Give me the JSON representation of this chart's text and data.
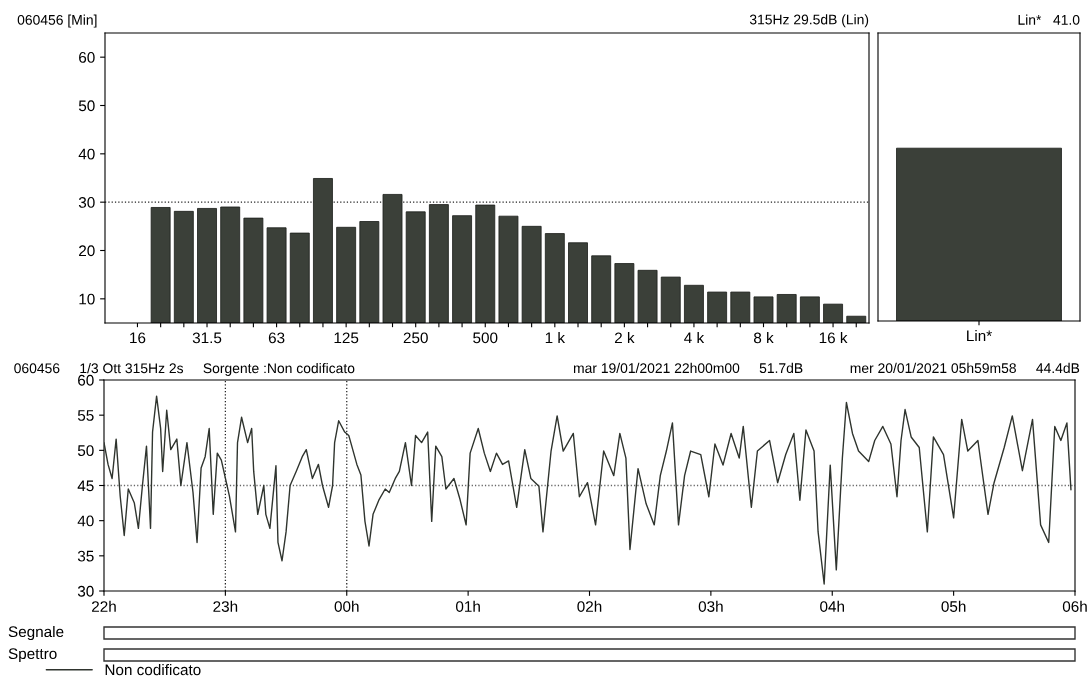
{
  "chart_data": [
    {
      "type": "bar",
      "title": "060456 [Min]",
      "annotations": [
        "315Hz 29.5dB (Lin)"
      ],
      "categories": [
        "16",
        null,
        null,
        "31.5",
        null,
        null,
        "63",
        null,
        null,
        "125",
        null,
        null,
        "250",
        null,
        null,
        "500",
        null,
        null,
        "1 k",
        null,
        null,
        "2 k",
        null,
        null,
        "4 k",
        null,
        null,
        "8 k",
        null,
        null,
        "16 k",
        null
      ],
      "values": [
        null,
        28.9,
        28.1,
        28.7,
        29.0,
        26.7,
        24.7,
        23.6,
        34.9,
        24.8,
        26.0,
        31.6,
        28.0,
        29.5,
        27.2,
        29.4,
        27.1,
        25.0,
        23.5,
        21.6,
        18.9,
        17.3,
        15.9,
        14.5,
        12.8,
        11.4,
        11.4,
        10.4,
        10.9,
        10.4,
        8.9,
        6.4
      ],
      "color": "#3b4039",
      "ylim": [
        5,
        65
      ],
      "yticks": [
        10,
        20,
        30,
        40,
        50,
        60
      ],
      "grid": false,
      "ref_lines": [
        {
          "axis": "y",
          "value": 30,
          "line_style": "dotted",
          "color": "#222222"
        }
      ]
    },
    {
      "type": "bar",
      "title": "Lin*   41.0",
      "categories": [
        "Lin*"
      ],
      "values": [
        41.0
      ],
      "color": "#3b4039",
      "ylim": [
        5,
        65
      ],
      "tick_labels": "x",
      "grid": false
    },
    {
      "type": "line",
      "title": "060456     1/3 Ott 315Hz 2s     Sorgente :Non codificato",
      "annotations": [
        "mar 19/01/2021 22h00m00     51.7dB",
        "mer 20/01/2021 05h59m58     44.4dB",
        "Segnale",
        "Spettro"
      ],
      "xlim": [
        "2021-01-19T22:00",
        "2021-01-20T06:00"
      ],
      "xticks": [
        {
          "value": "2021-01-19T22:00",
          "label": "22h"
        },
        {
          "value": "2021-01-19T23:00",
          "label": "23h"
        },
        {
          "value": "2021-01-20T00:00",
          "label": "00h"
        },
        {
          "value": "2021-01-20T01:00",
          "label": "01h"
        },
        {
          "value": "2021-01-20T02:00",
          "label": "02h"
        },
        {
          "value": "2021-01-20T03:00",
          "label": "03h"
        },
        {
          "value": "2021-01-20T04:00",
          "label": "04h"
        },
        {
          "value": "2021-01-20T05:00",
          "label": "05h"
        },
        {
          "value": "2021-01-20T06:00",
          "label": "06h"
        }
      ],
      "ylim": [
        30,
        60
      ],
      "yticks": [
        30,
        35,
        40,
        45,
        50,
        55,
        60
      ],
      "grid": false,
      "legend": "bottom",
      "line_style": "solid",
      "marker": "none",
      "ref_lines": [
        {
          "axis": "y",
          "value": 45,
          "line_style": "dotted",
          "color": "#666666"
        },
        {
          "axis": "x",
          "value": "2021-01-19T23:00",
          "line_style": "dotted",
          "color": "#222222"
        },
        {
          "axis": "x",
          "value": "2021-01-20T00:00",
          "line_style": "dotted",
          "color": "#222222"
        }
      ],
      "series": [
        {
          "name": "Non codificato",
          "color": "#2f342e",
          "x": [
            "2021-01-19T22:00",
            "2021-01-19T22:02",
            "2021-01-19T22:04",
            "2021-01-19T22:06",
            "2021-01-19T22:08",
            "2021-01-19T22:10",
            "2021-01-19T22:12",
            "2021-01-19T22:15",
            "2021-01-19T22:17",
            "2021-01-19T22:19",
            "2021-01-19T22:21",
            "2021-01-19T22:23",
            "2021-01-19T22:24",
            "2021-01-19T22:26",
            "2021-01-19T22:28",
            "2021-01-19T22:29",
            "2021-01-19T22:31",
            "2021-01-19T22:33",
            "2021-01-19T22:36",
            "2021-01-19T22:38",
            "2021-01-19T22:41",
            "2021-01-19T22:44",
            "2021-01-19T22:46",
            "2021-01-19T22:48",
            "2021-01-19T22:50",
            "2021-01-19T22:52",
            "2021-01-19T22:54",
            "2021-01-19T22:56",
            "2021-01-19T22:58",
            "2021-01-19T23:02",
            "2021-01-19T23:05",
            "2021-01-19T23:06",
            "2021-01-19T23:08",
            "2021-01-19T23:11",
            "2021-01-19T23:13",
            "2021-01-19T23:14",
            "2021-01-19T23:16",
            "2021-01-19T23:19",
            "2021-01-19T23:20",
            "2021-01-19T23:22",
            "2021-01-19T23:25",
            "2021-01-19T23:26",
            "2021-01-19T23:28",
            "2021-01-19T23:30",
            "2021-01-19T23:32",
            "2021-01-19T23:35",
            "2021-01-19T23:38",
            "2021-01-19T23:40",
            "2021-01-19T23:43",
            "2021-01-19T23:46",
            "2021-01-19T23:48",
            "2021-01-19T23:51",
            "2021-01-19T23:53",
            "2021-01-19T23:54",
            "2021-01-19T23:56",
            "2021-01-19T23:59",
            "2021-01-20T00:01",
            "2021-01-20T00:02",
            "2021-01-20T00:05",
            "2021-01-20T00:07",
            "2021-01-20T00:09",
            "2021-01-20T00:11",
            "2021-01-20T00:13",
            "2021-01-20T00:16",
            "2021-01-20T00:19",
            "2021-01-20T00:21",
            "2021-01-20T00:24",
            "2021-01-20T00:26",
            "2021-01-20T00:29",
            "2021-01-20T00:32",
            "2021-01-20T00:34",
            "2021-01-20T00:37",
            "2021-01-20T00:40",
            "2021-01-20T00:42",
            "2021-01-20T00:44",
            "2021-01-20T00:47",
            "2021-01-20T00:49",
            "2021-01-20T00:53",
            "2021-01-20T00:56",
            "2021-01-20T00:59",
            "2021-01-20T01:01",
            "2021-01-20T01:05",
            "2021-01-20T01:08",
            "2021-01-20T01:11",
            "2021-01-20T01:14",
            "2021-01-20T01:17",
            "2021-01-20T01:20",
            "2021-01-20T01:24",
            "2021-01-20T01:28",
            "2021-01-20T01:31",
            "2021-01-20T01:35",
            "2021-01-20T01:37",
            "2021-01-20T01:41",
            "2021-01-20T01:44",
            "2021-01-20T01:47",
            "2021-01-20T01:52",
            "2021-01-20T01:55",
            "2021-01-20T01:59",
            "2021-01-20T02:03",
            "2021-01-20T02:07",
            "2021-01-20T02:12",
            "2021-01-20T02:15",
            "2021-01-20T02:18",
            "2021-01-20T02:20",
            "2021-01-20T02:24",
            "2021-01-20T02:28",
            "2021-01-20T02:32",
            "2021-01-20T02:35",
            "2021-01-20T02:38",
            "2021-01-20T02:41",
            "2021-01-20T02:44",
            "2021-01-20T02:47",
            "2021-01-20T02:50",
            "2021-01-20T02:55",
            "2021-01-20T02:59",
            "2021-01-20T03:02",
            "2021-01-20T03:06",
            "2021-01-20T03:10",
            "2021-01-20T03:14",
            "2021-01-20T03:16",
            "2021-01-20T03:20",
            "2021-01-20T03:23",
            "2021-01-20T03:29",
            "2021-01-20T03:33",
            "2021-01-20T03:37",
            "2021-01-20T03:41",
            "2021-01-20T03:44",
            "2021-01-20T03:47",
            "2021-01-20T03:51",
            "2021-01-20T03:53",
            "2021-01-20T03:56",
            "2021-01-20T03:59",
            "2021-01-20T04:02",
            "2021-01-20T04:05",
            "2021-01-20T04:07",
            "2021-01-20T04:10",
            "2021-01-20T04:13",
            "2021-01-20T04:18",
            "2021-01-20T04:21",
            "2021-01-20T04:25",
            "2021-01-20T04:29",
            "2021-01-20T04:32",
            "2021-01-20T04:34",
            "2021-01-20T04:36",
            "2021-01-20T04:39",
            "2021-01-20T04:43",
            "2021-01-20T04:47",
            "2021-01-20T04:50",
            "2021-01-20T04:55",
            "2021-01-20T05:00",
            "2021-01-20T05:04",
            "2021-01-20T05:07",
            "2021-01-20T05:12",
            "2021-01-20T05:17",
            "2021-01-20T05:20",
            "2021-01-20T05:25",
            "2021-01-20T05:29",
            "2021-01-20T05:34",
            "2021-01-20T05:39",
            "2021-01-20T05:43",
            "2021-01-20T05:47",
            "2021-01-20T05:50",
            "2021-01-20T05:53",
            "2021-01-20T05:56",
            "2021-01-20T05:58"
          ],
          "values": [
            51.1,
            48.0,
            46.0,
            51.6,
            43.5,
            37.9,
            44.5,
            42.5,
            38.9,
            45.0,
            50.6,
            38.9,
            52.6,
            57.7,
            53.1,
            47.0,
            55.7,
            50.1,
            51.6,
            45.0,
            51.1,
            44.0,
            36.9,
            47.5,
            49.1,
            53.1,
            40.9,
            49.6,
            48.6,
            43.5,
            38.4,
            51.1,
            54.7,
            51.1,
            53.1,
            47.0,
            40.9,
            45.0,
            40.9,
            38.9,
            47.8,
            36.9,
            34.3,
            38.4,
            45.0,
            47.0,
            49.1,
            50.1,
            46.0,
            48.0,
            45.0,
            41.9,
            45.0,
            51.1,
            54.2,
            52.6,
            52.1,
            51.1,
            48.0,
            46.5,
            39.9,
            36.4,
            40.9,
            43.0,
            44.5,
            44.0,
            46.0,
            47.0,
            51.1,
            45.0,
            52.1,
            51.1,
            52.6,
            39.9,
            50.6,
            49.1,
            44.5,
            46.0,
            43.0,
            39.4,
            49.6,
            53.1,
            49.6,
            47.0,
            49.6,
            48.0,
            48.5,
            41.9,
            50.1,
            46.0,
            44.9,
            38.4,
            49.9,
            54.9,
            49.9,
            52.4,
            43.4,
            45.4,
            39.4,
            49.9,
            46.4,
            52.4,
            48.9,
            35.9,
            47.4,
            42.4,
            39.4,
            46.4,
            49.9,
            53.9,
            39.4,
            46.4,
            49.9,
            49.4,
            43.4,
            50.9,
            47.9,
            52.4,
            48.9,
            53.4,
            41.9,
            49.9,
            51.4,
            45.4,
            49.4,
            52.4,
            42.9,
            52.9,
            49.9,
            38.4,
            31.0,
            47.9,
            33.0,
            48.9,
            56.8,
            52.4,
            49.9,
            48.4,
            51.4,
            53.4,
            50.9,
            43.4,
            51.4,
            55.8,
            51.9,
            50.4,
            38.4,
            51.9,
            49.4,
            40.4,
            54.4,
            49.9,
            51.4,
            40.9,
            45.4,
            50.4,
            54.9,
            47.1,
            54.4,
            39.4,
            36.9,
            53.4,
            51.4,
            53.9,
            44.4
          ]
        }
      ]
    }
  ]
}
